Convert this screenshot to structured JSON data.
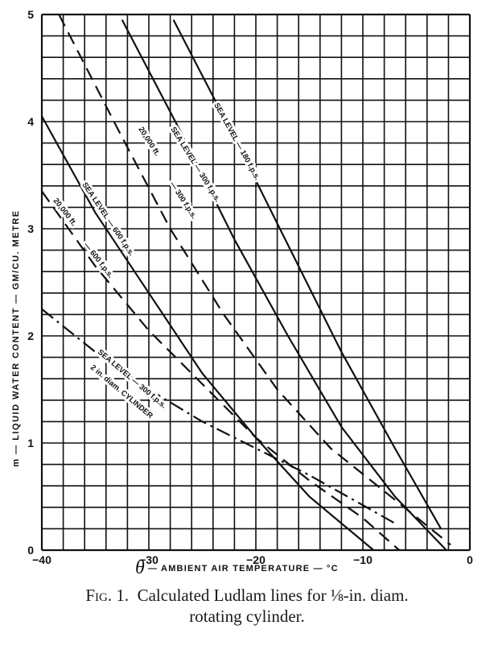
{
  "chart_data": {
    "type": "line",
    "title": "",
    "xlabel": "θ — AMBIENT AIR TEMPERATURE — °C",
    "ylabel": "m — LIQUID WATER CONTENT — GM/CU. METRE",
    "xlim": [
      -40,
      0
    ],
    "ylim": [
      0,
      5
    ],
    "x_ticks": [
      "-40",
      "-30",
      "-20",
      "-10",
      "0"
    ],
    "y_ticks": [
      "0",
      "1",
      "2",
      "3",
      "4",
      "5"
    ],
    "grid": true,
    "grid_x_step": 2,
    "grid_y_step": 0.2,
    "series": [
      {
        "name": "SEA LEVEL — 180 f.p.s.",
        "style": "solid",
        "x": [
          -27.7,
          -22,
          -17,
          -12,
          -7,
          -2.7
        ],
        "y": [
          4.95,
          3.85,
          2.85,
          1.85,
          0.95,
          0.2
        ]
      },
      {
        "name": "SEA LEVEL — 300 f.p.s.",
        "style": "solid",
        "x": [
          -32.5,
          -27,
          -22,
          -17,
          -12,
          -7,
          -2.2
        ],
        "y": [
          4.95,
          3.9,
          2.9,
          2.0,
          1.15,
          0.5,
          0.0
        ]
      },
      {
        "name": "20,000 ft — 300 f.p.s.",
        "style": "dashed",
        "x": [
          -38.4,
          -33,
          -28,
          -23,
          -18,
          -13,
          -8,
          -1.8
        ],
        "y": [
          5.0,
          3.95,
          3.0,
          2.2,
          1.5,
          0.95,
          0.55,
          0.05
        ]
      },
      {
        "name": "SEA LEVEL — 600 f.p.s.",
        "style": "solid",
        "x": [
          -40,
          -35,
          -30,
          -25,
          -20,
          -15,
          -9
        ],
        "y": [
          4.05,
          3.15,
          2.4,
          1.65,
          1.05,
          0.5,
          0.0
        ]
      },
      {
        "name": "20,000 ft — 600 f.p.s.",
        "style": "dashed",
        "x": [
          -40,
          -35,
          -30,
          -25,
          -20,
          -15,
          -10,
          -6.6
        ],
        "y": [
          3.35,
          2.65,
          2.05,
          1.55,
          1.05,
          0.65,
          0.3,
          0.0
        ]
      },
      {
        "name": "SEA LEVEL — 300 f.p.s. 2 in. diam. CYLINDER",
        "style": "dash-dot",
        "x": [
          -40,
          -35,
          -30,
          -25,
          -20,
          -15,
          -10,
          -7
        ],
        "y": [
          2.25,
          1.85,
          1.5,
          1.2,
          0.95,
          0.7,
          0.42,
          0.25
        ]
      }
    ]
  },
  "labels": {
    "sl180": "SEA LEVEL — 180 f.p.s.",
    "sl300": "SEA LEVEL — 300 f.p.s.",
    "ft300a": "20,000 ft.",
    "ft300b": "— 300 f.p.s.",
    "sl600": "SEA LEVEL — 600 f.p.s.",
    "ft600a": "20,000 ft.",
    "ft600b": "— 600 f.p.s.",
    "cylA": "SEA LEVEL — 300 f.p.s.",
    "cylB": "2 in. diam. CYLINDER"
  },
  "axes": {
    "x_title_symbol": "θ",
    "x_title_text": "— AMBIENT AIR TEMPERATURE — °C",
    "y_title": "m — LIQUID WATER CONTENT — GM/CU. METRE"
  },
  "caption": {
    "fig": "Fig. 1.",
    "line1": "Calculated Ludlam lines for ⅛-in. diam.",
    "line2": "rotating cylinder."
  }
}
